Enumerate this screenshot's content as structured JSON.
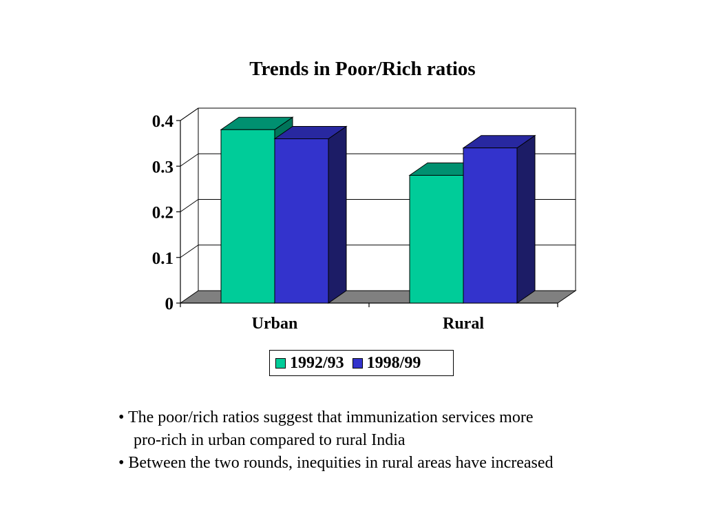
{
  "chart_data": {
    "type": "bar",
    "title": "Trends in Poor/Rich ratios",
    "categories": [
      "Urban",
      "Rural"
    ],
    "series": [
      {
        "name": "1992/93",
        "values": [
          0.38,
          0.28
        ]
      },
      {
        "name": "1998/99",
        "values": [
          0.36,
          0.34
        ]
      }
    ],
    "ylim": [
      0,
      0.4
    ],
    "yticks": [
      0,
      0.1,
      0.2,
      0.3,
      0.4
    ],
    "ytick_labels": [
      "0",
      "0.1",
      "0.2",
      "0.3",
      "0.4"
    ],
    "grid": true,
    "legend_position": "bottom",
    "colors": {
      "1992/93": {
        "front": "#00CC99",
        "top": "#009070",
        "side": "#00755A"
      },
      "1998/99": {
        "front": "#3333CC",
        "top": "#2828A0",
        "side": "#1C1C66"
      },
      "floor": "#808080"
    }
  },
  "notes": {
    "line1": "• The poor/rich ratios suggest that immunization services more",
    "line2": "pro-rich in urban compared to rural India",
    "line3": "• Between the two rounds, inequities in rural areas have increased"
  }
}
